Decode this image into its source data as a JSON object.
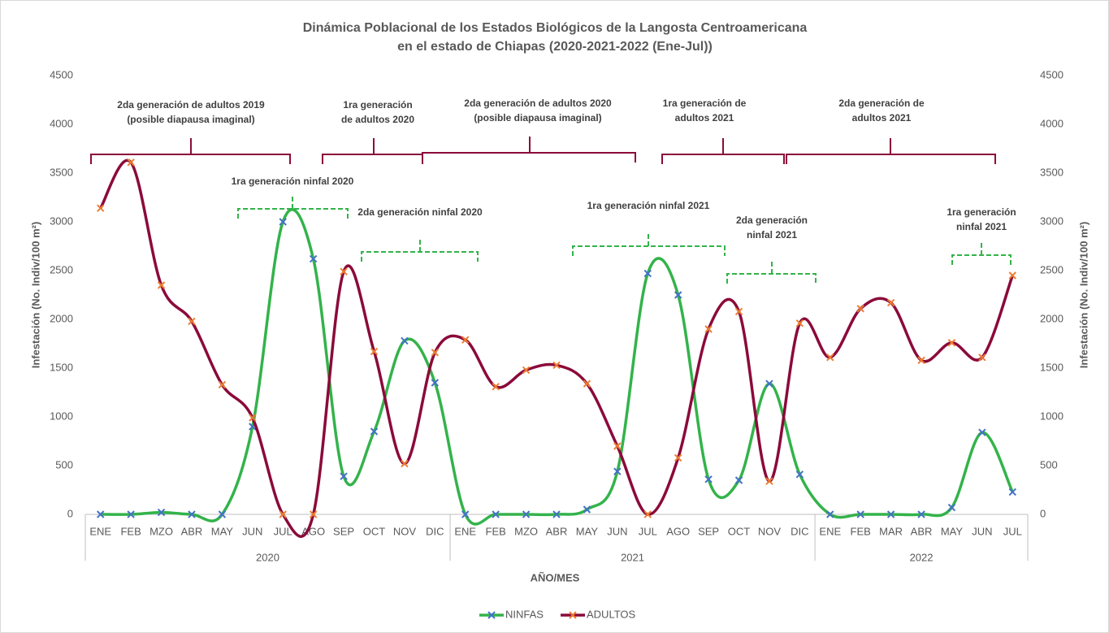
{
  "chart_data": {
    "type": "line",
    "title_lines": [
      "Dinámica Poblacional  de los Estados Biológicos de la Langosta Centroamericana",
      "en el estado de Chiapas  (2020-2021-2022 (Ene-Jul))"
    ],
    "ylabel": "Infestación (No. Indiv/100 m²)",
    "y2label": "Infestación (No. Indiv/100 m²)",
    "xlabel": "AÑO/MES",
    "categories": [
      "ENE",
      "FEB",
      "MZO",
      "ABR",
      "MAY",
      "JUN",
      "JUL",
      "AGO",
      "SEP",
      "OCT",
      "NOV",
      "DIC",
      "ENE",
      "FEB",
      "MZO",
      "ABR",
      "MAY",
      "JUN",
      "JUL",
      "AGO",
      "SEP",
      "OCT",
      "NOV",
      "DIC",
      "ENE",
      "FEB",
      "MAR",
      "ABR",
      "MAY",
      "JUN",
      "JUL"
    ],
    "groups": [
      {
        "label": "2020",
        "count": 12
      },
      {
        "label": "2021",
        "count": 12
      },
      {
        "label": "2022",
        "count": 7
      }
    ],
    "series": [
      {
        "name": "NINFAS",
        "color": "#33b34a",
        "marker_color": "#4472c4",
        "values": [
          0,
          0,
          20,
          0,
          0,
          900,
          3000,
          2620,
          390,
          850,
          1780,
          1350,
          0,
          0,
          0,
          0,
          50,
          440,
          2470,
          2250,
          360,
          350,
          1340,
          410,
          0,
          0,
          0,
          0,
          70,
          840,
          230
        ]
      },
      {
        "name": "ADULTOS",
        "color": "#8b0a3a",
        "marker_color": "#ed7d31",
        "values": [
          3140,
          3610,
          2350,
          1980,
          1330,
          990,
          0,
          0,
          2490,
          1670,
          520,
          1660,
          1790,
          1310,
          1480,
          1530,
          1340,
          700,
          0,
          580,
          1900,
          2080,
          340,
          1960,
          1610,
          2110,
          2170,
          1580,
          1760,
          1610,
          2450
        ]
      }
    ],
    "ylim": [
      0,
      4500
    ],
    "yticks": [
      0,
      500,
      1000,
      1500,
      2000,
      2500,
      3000,
      3500,
      4000,
      4500
    ],
    "y2lim": [
      0,
      4500
    ],
    "y2ticks": [
      0,
      500,
      1000,
      1500,
      2000,
      2500,
      3000,
      3500,
      4000,
      4500
    ],
    "annotations": [
      {
        "lines": [
          "2da generación de adultos 2019",
          "(posible diapausa imaginal)"
        ],
        "color": "#8b0a3a"
      },
      {
        "lines": [
          "1ra generación",
          "de adultos 2020"
        ],
        "color": "#8b0a3a"
      },
      {
        "lines": [
          "2da generación de adultos 2020",
          "(posible diapausa imaginal)"
        ],
        "color": "#8b0a3a"
      },
      {
        "lines": [
          "1ra generación de",
          "adultos 2021"
        ],
        "color": "#8b0a3a"
      },
      {
        "lines": [
          "2da generación de",
          "adultos 2021"
        ],
        "color": "#8b0a3a"
      },
      {
        "lines": [
          "1ra generación ninfal 2020"
        ],
        "color": "#33b34a"
      },
      {
        "lines": [
          "2da generación ninfal 2020"
        ],
        "color": "#33b34a"
      },
      {
        "lines": [
          "1ra generación ninfal 2021"
        ],
        "color": "#33b34a"
      },
      {
        "lines": [
          "2da generación",
          "ninfal 2021"
        ],
        "color": "#33b34a"
      },
      {
        "lines": [
          "1ra generación",
          "ninfal 2021"
        ],
        "color": "#33b34a"
      }
    ]
  }
}
